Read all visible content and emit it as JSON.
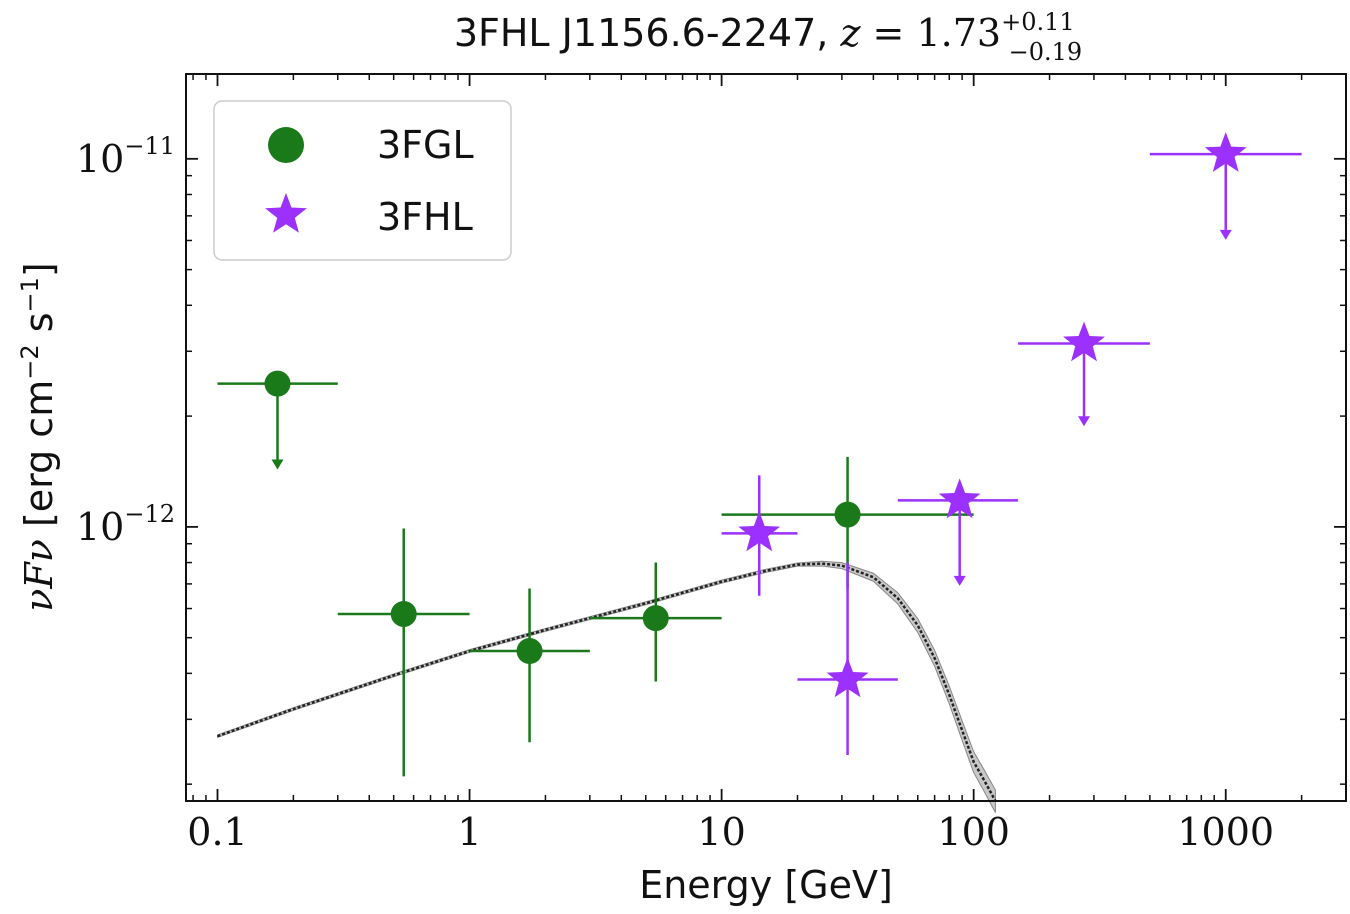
{
  "chart_data": {
    "type": "scatter",
    "title": {
      "prefix": "3FHL J1156.6-2247, ",
      "z_symbol": "z",
      "equals": " = ",
      "z_value": "1.73",
      "z_err_plus": "+0.11",
      "z_err_minus": "−0.19"
    },
    "xlabel": "Energy [GeV]",
    "ylabel": {
      "symbol": "νFν",
      "units_open": " [erg cm",
      "units_cm_exp": "−2",
      "units_mid": " s",
      "units_s_exp": "−1",
      "units_close": "]"
    },
    "x_scale": "log",
    "y_scale": "log",
    "xlim": [
      0.075,
      3000
    ],
    "ylim": [
      1.8e-13,
      1.7e-11
    ],
    "x_ticks": [
      {
        "value": 0.1,
        "label": "0.1"
      },
      {
        "value": 1,
        "label": "1"
      },
      {
        "value": 10,
        "label": "10"
      },
      {
        "value": 100,
        "label": "100"
      },
      {
        "value": 1000,
        "label": "1000"
      }
    ],
    "y_ticks": [
      {
        "value": 1e-11,
        "base": "10",
        "exp": "−11"
      },
      {
        "value": 1e-12,
        "base": "10",
        "exp": "−12"
      }
    ],
    "legend": {
      "position": "top-left",
      "entries": [
        {
          "label": "3FGL",
          "marker": "circle",
          "color": "#1a7a1a"
        },
        {
          "label": "3FHL",
          "marker": "star",
          "color": "#9b30ff"
        }
      ]
    },
    "series": [
      {
        "name": "3FGL",
        "marker": "circle",
        "color": "#1a7a1a",
        "points": [
          {
            "x": 0.173,
            "xlo": 0.1,
            "xhi": 0.3,
            "y": 2.45e-12,
            "upper_limit": true,
            "arrow_to": 1.45e-12
          },
          {
            "x": 0.548,
            "xlo": 0.3,
            "xhi": 1.0,
            "y": 5.8e-13,
            "ylo": 2.1e-13,
            "yhi": 9.9e-13
          },
          {
            "x": 1.73,
            "xlo": 1.0,
            "xhi": 3.0,
            "y": 4.6e-13,
            "ylo": 2.6e-13,
            "yhi": 6.8e-13
          },
          {
            "x": 5.48,
            "xlo": 3.0,
            "xhi": 10.0,
            "y": 5.65e-13,
            "ylo": 3.8e-13,
            "yhi": 8e-13
          },
          {
            "x": 31.6,
            "xlo": 10.0,
            "xhi": 100.0,
            "y": 1.08e-12,
            "ylo": 6.8e-13,
            "yhi": 1.55e-12
          }
        ]
      },
      {
        "name": "3FHL",
        "marker": "star",
        "color": "#9b30ff",
        "points": [
          {
            "x": 14.1,
            "xlo": 10.0,
            "xhi": 20.0,
            "y": 9.6e-13,
            "ylo": 6.5e-13,
            "yhi": 1.38e-12
          },
          {
            "x": 31.6,
            "xlo": 20.0,
            "xhi": 50.0,
            "y": 3.85e-13,
            "ylo": 2.4e-13,
            "yhi": 8e-13
          },
          {
            "x": 88.0,
            "xlo": 50.0,
            "xhi": 150.0,
            "y": 1.18e-12,
            "upper_limit": true,
            "arrow_to": 7e-13
          },
          {
            "x": 274.0,
            "xlo": 150.0,
            "xhi": 500.0,
            "y": 3.15e-12,
            "upper_limit": true,
            "arrow_to": 1.9e-12
          },
          {
            "x": 1000.0,
            "xlo": 500.0,
            "xhi": 2000.0,
            "y": 1.03e-11,
            "upper_limit": true,
            "arrow_to": 6.1e-12
          }
        ]
      }
    ],
    "model": {
      "name": "best-fit spectral model with uncertainty band",
      "line_color": "#222222",
      "band_color": "#c8c8c8",
      "curve": [
        {
          "x": 0.1,
          "y": 2.7e-13
        },
        {
          "x": 0.2,
          "y": 3.2e-13
        },
        {
          "x": 0.5,
          "y": 3.95e-13
        },
        {
          "x": 1.0,
          "y": 4.6e-13
        },
        {
          "x": 2.0,
          "y": 5.25e-13
        },
        {
          "x": 5.0,
          "y": 6.2e-13
        },
        {
          "x": 10.0,
          "y": 7.1e-13
        },
        {
          "x": 15.0,
          "y": 7.6e-13
        },
        {
          "x": 20.0,
          "y": 7.9e-13
        },
        {
          "x": 25.0,
          "y": 7.95e-13
        },
        {
          "x": 30.0,
          "y": 7.85e-13
        },
        {
          "x": 40.0,
          "y": 7.3e-13
        },
        {
          "x": 50.0,
          "y": 6.4e-13
        },
        {
          "x": 60.0,
          "y": 5.4e-13
        },
        {
          "x": 70.0,
          "y": 4.4e-13
        },
        {
          "x": 80.0,
          "y": 3.5e-13
        },
        {
          "x": 90.0,
          "y": 2.8e-13
        },
        {
          "x": 100.0,
          "y": 2.3e-13
        },
        {
          "x": 110.0,
          "y": 2.05e-13
        },
        {
          "x": 122.0,
          "y": 1.8e-13
        }
      ],
      "band_width_factor": [
        {
          "x": 0.1,
          "f": 0.008
        },
        {
          "x": 20.0,
          "f": 0.01
        },
        {
          "x": 40.0,
          "f": 0.025
        },
        {
          "x": 70.0,
          "f": 0.05
        },
        {
          "x": 100.0,
          "f": 0.065
        },
        {
          "x": 122.0,
          "f": 0.07
        }
      ]
    }
  }
}
